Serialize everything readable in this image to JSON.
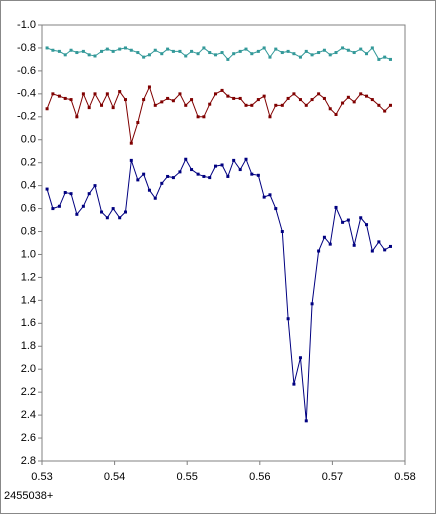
{
  "chart_data": {
    "type": "line",
    "annotation": "2455038+",
    "x": [
      0.5307,
      0.5315,
      0.5324,
      0.5332,
      0.534,
      0.5348,
      0.5357,
      0.5365,
      0.5373,
      0.5382,
      0.539,
      0.5398,
      0.5407,
      0.5415,
      0.5423,
      0.5432,
      0.544,
      0.5448,
      0.5456,
      0.5465,
      0.5473,
      0.5481,
      0.549,
      0.5498,
      0.5506,
      0.5515,
      0.5523,
      0.5531,
      0.5539,
      0.5548,
      0.5556,
      0.5564,
      0.5573,
      0.5581,
      0.5589,
      0.5598,
      0.5606,
      0.5614,
      0.5622,
      0.5631,
      0.5639,
      0.5647,
      0.5656,
      0.5664,
      0.5672,
      0.5681,
      0.5689,
      0.5697,
      0.5705,
      0.5714,
      0.5722,
      0.573,
      0.5739,
      0.5747,
      0.5755,
      0.5764,
      0.5772,
      0.578
    ],
    "series": [
      {
        "color": "#000080",
        "values": [
          0.43,
          0.6,
          0.58,
          0.46,
          0.47,
          0.65,
          0.58,
          0.47,
          0.4,
          0.63,
          0.68,
          0.6,
          0.68,
          0.63,
          0.18,
          0.35,
          0.3,
          0.44,
          0.51,
          0.38,
          0.32,
          0.33,
          0.28,
          0.17,
          0.26,
          0.3,
          0.32,
          0.33,
          0.23,
          0.22,
          0.32,
          0.18,
          0.26,
          0.17,
          0.3,
          0.31,
          0.5,
          0.48,
          0.6,
          0.8,
          1.56,
          2.13,
          1.9,
          2.45,
          1.43,
          0.97,
          0.85,
          0.91,
          0.59,
          0.72,
          0.7,
          0.92,
          0.68,
          0.74,
          0.97,
          0.89,
          0.96,
          0.93
        ]
      },
      {
        "color": "#800000",
        "values": [
          -0.27,
          -0.4,
          -0.38,
          -0.36,
          -0.35,
          -0.2,
          -0.4,
          -0.28,
          -0.4,
          -0.3,
          -0.4,
          -0.28,
          -0.42,
          -0.35,
          0.03,
          -0.15,
          -0.35,
          -0.46,
          -0.3,
          -0.33,
          -0.36,
          -0.34,
          -0.4,
          -0.3,
          -0.35,
          -0.2,
          -0.2,
          -0.31,
          -0.4,
          -0.43,
          -0.38,
          -0.36,
          -0.36,
          -0.3,
          -0.3,
          -0.35,
          -0.38,
          -0.2,
          -0.3,
          -0.3,
          -0.36,
          -0.4,
          -0.35,
          -0.3,
          -0.35,
          -0.4,
          -0.36,
          -0.27,
          -0.22,
          -0.32,
          -0.37,
          -0.33,
          -0.4,
          -0.38,
          -0.35,
          -0.3,
          -0.25,
          -0.3
        ]
      },
      {
        "color": "#339999",
        "values": [
          -0.8,
          -0.78,
          -0.77,
          -0.74,
          -0.78,
          -0.76,
          -0.77,
          -0.74,
          -0.73,
          -0.77,
          -0.79,
          -0.77,
          -0.79,
          -0.8,
          -0.78,
          -0.76,
          -0.72,
          -0.74,
          -0.78,
          -0.75,
          -0.79,
          -0.77,
          -0.77,
          -0.73,
          -0.77,
          -0.75,
          -0.8,
          -0.76,
          -0.74,
          -0.76,
          -0.7,
          -0.75,
          -0.77,
          -0.79,
          -0.75,
          -0.77,
          -0.8,
          -0.72,
          -0.79,
          -0.76,
          -0.77,
          -0.75,
          -0.72,
          -0.77,
          -0.74,
          -0.76,
          -0.78,
          -0.74,
          -0.76,
          -0.8,
          -0.78,
          -0.76,
          -0.79,
          -0.75,
          -0.8,
          -0.7,
          -0.72,
          -0.7
        ]
      }
    ],
    "xlim": [
      0.53,
      0.58
    ],
    "xticks": [
      0.53,
      0.54,
      0.55,
      0.56,
      0.57,
      0.58
    ],
    "ylim": [
      -1.0,
      2.8
    ],
    "y_inverted": true,
    "yticks": [
      {
        "value": -1.0,
        "label": "-1.0"
      },
      {
        "value": -0.8,
        "label": "-0.8"
      },
      {
        "value": -0.6,
        "label": "-0.6"
      },
      {
        "value": -0.4,
        "label": "-0.4"
      },
      {
        "value": -0.2,
        "label": "-0.2"
      },
      {
        "value": 0.0,
        "label": "0.0"
      },
      0.2,
      0.4,
      0.6,
      0.8,
      {
        "value": 1.0,
        "label": "1.0"
      },
      1.2,
      1.4,
      1.6,
      1.8,
      {
        "value": 2.0,
        "label": "2.0"
      },
      2.2,
      2.4,
      2.6,
      2.8
    ]
  }
}
